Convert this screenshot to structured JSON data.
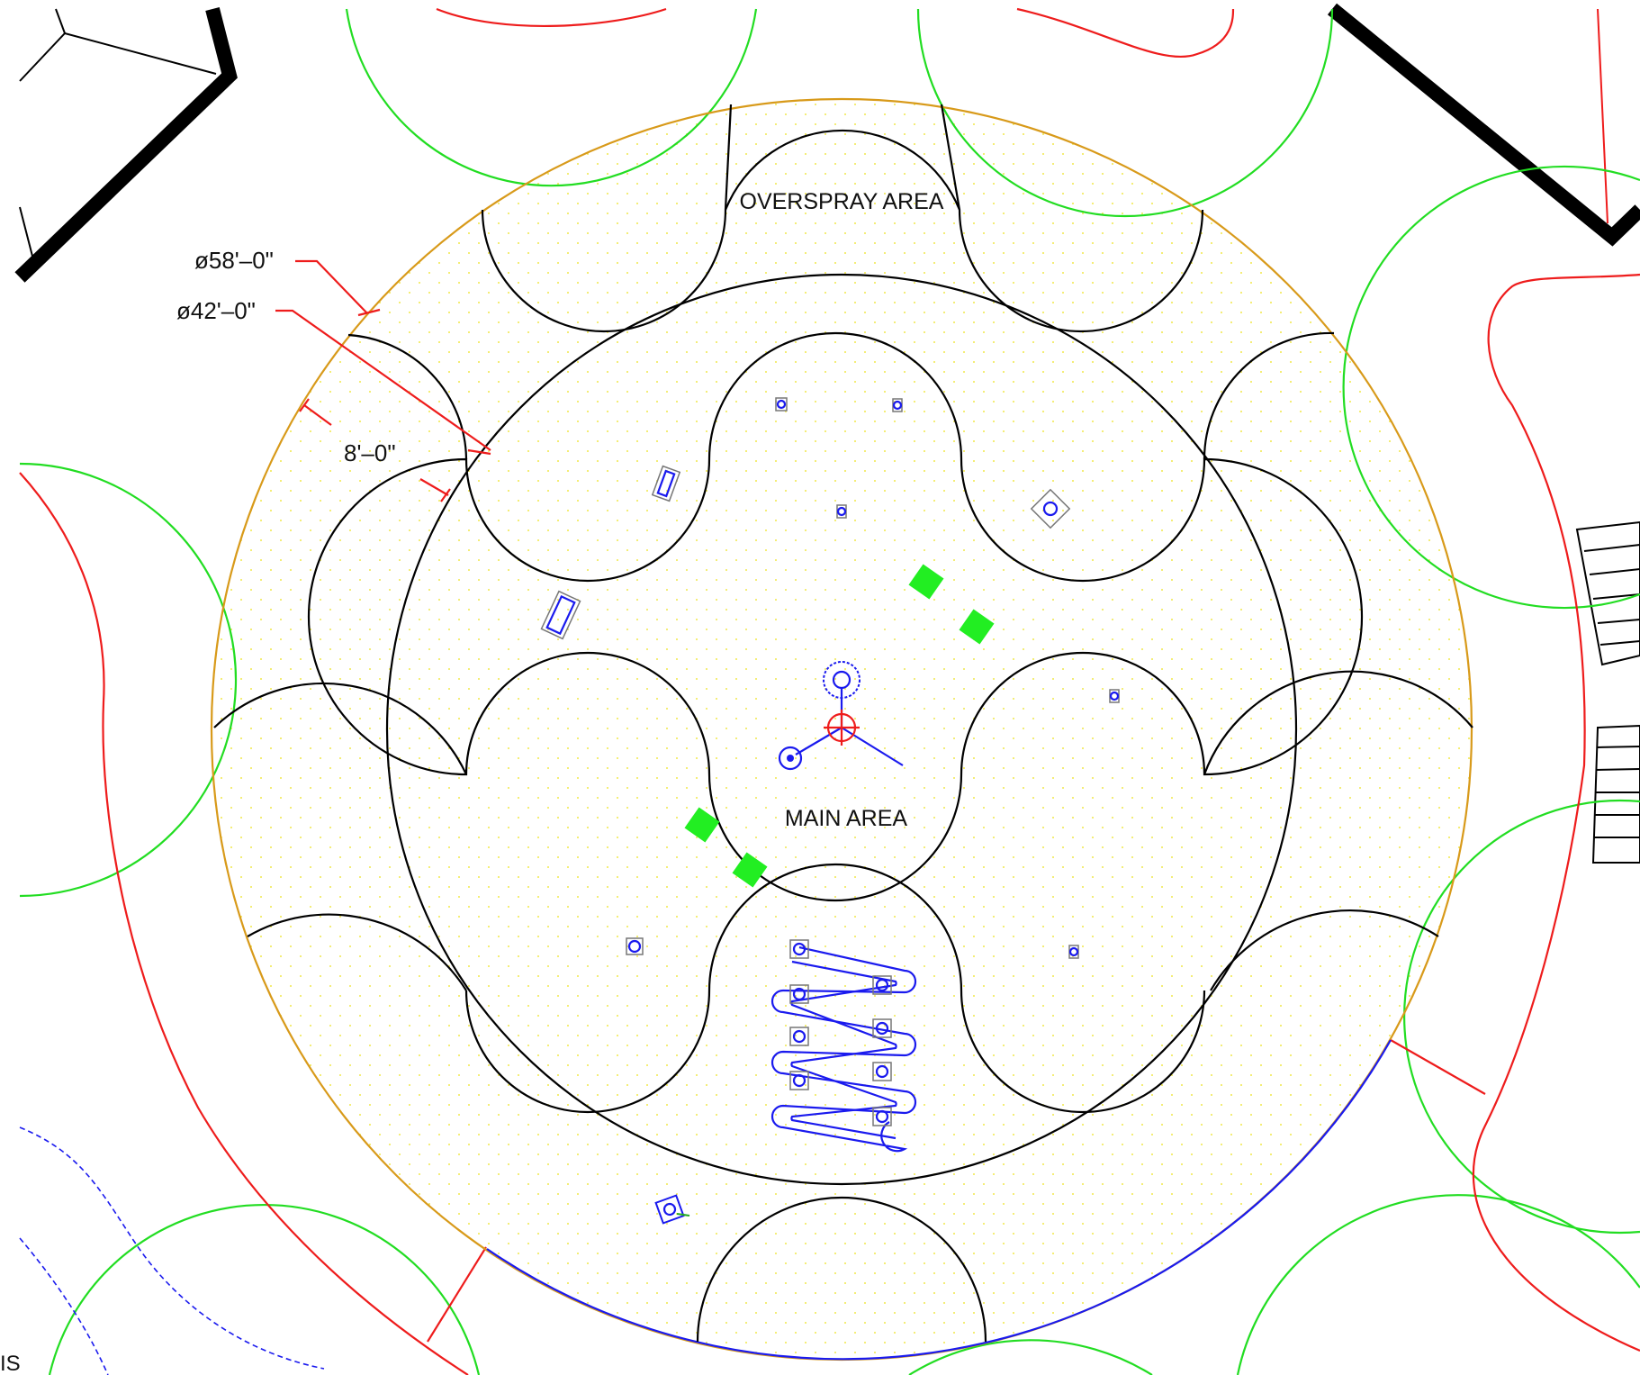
{
  "labels": {
    "overspray_area": "OVERSPRAY AREA",
    "main_area": "MAIN AREA",
    "dia_outer": "ø58'–0\"",
    "dia_inner": "ø42'–0\"",
    "offset": "8'–0\"",
    "edge_fragment": "IS"
  },
  "colors": {
    "outline": "#000000",
    "overspray_ring": "#d89a1a",
    "tree_canopy": "#22dd22",
    "dimension_line": "#ee1c1c",
    "walk_edge": "#1a1aee",
    "play_equipment": "#1a1aee",
    "planter": "#22ee22",
    "stipple": "#f0e84a"
  }
}
